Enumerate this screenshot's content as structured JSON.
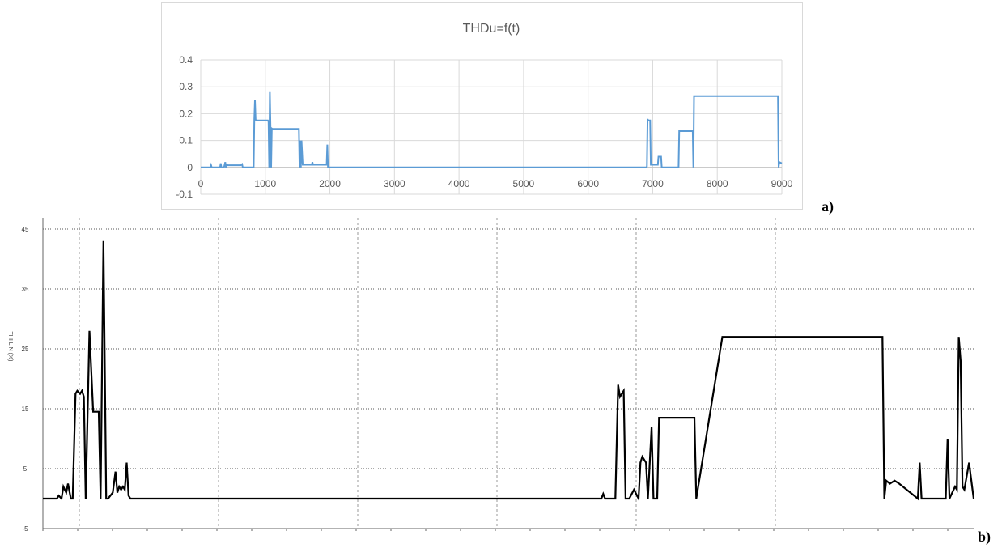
{
  "chart_data": [
    {
      "type": "line",
      "title": "THDu=f(t)",
      "xlabel": "",
      "ylabel": "",
      "xlim": [
        0,
        9000
      ],
      "ylim": [
        -0.1,
        0.4
      ],
      "x_ticks": [
        "0",
        "1000",
        "2000",
        "3000",
        "4000",
        "5000",
        "6000",
        "7000",
        "8000",
        "9000"
      ],
      "y_ticks": [
        "0.4",
        "0.3",
        "0.2",
        "0.1",
        "0",
        "-0.1"
      ],
      "grid": true,
      "color": "#5b9bd5",
      "series": [
        {
          "x": [
            0,
            150,
            160,
            170,
            300,
            310,
            320,
            360,
            380,
            390,
            400,
            420,
            620,
            640,
            650,
            820,
            830,
            840,
            850,
            860,
            1040,
            1050,
            1060,
            1070,
            1080,
            1090,
            1100,
            1110,
            1120,
            1500,
            1520,
            1530,
            1540,
            1550,
            1560,
            1580,
            1600,
            1720,
            1730,
            1740,
            1950,
            1960,
            1970,
            1980,
            1990,
            6700,
            6900,
            6910,
            6920,
            6930,
            6960,
            6970,
            6980,
            7080,
            7090,
            7100,
            7130,
            7140,
            7150,
            7400,
            7410,
            7620,
            7630,
            7640,
            8930,
            8940,
            8950,
            8960,
            9000
          ],
          "y": [
            0,
            0,
            0.008,
            0,
            0,
            0.015,
            0,
            0,
            0.02,
            0,
            0.01,
            0.008,
            0.008,
            0.012,
            0,
            0,
            0.178,
            0.25,
            0.178,
            0.175,
            0.175,
            0.17,
            0,
            0.28,
            0.145,
            0,
            0.145,
            0.143,
            0.143,
            0.143,
            0.143,
            0,
            0.1,
            0,
            0.1,
            0.01,
            0.01,
            0.01,
            0.02,
            0.01,
            0.01,
            0.085,
            0,
            0,
            0,
            0,
            0,
            0.003,
            0.18,
            0.175,
            0.175,
            0.01,
            0.01,
            0.01,
            0.04,
            0.04,
            0.04,
            0,
            0,
            0,
            0.135,
            0.135,
            0,
            0.265,
            0.265,
            0.265,
            0,
            0.02,
            0.015
          ]
        }
      ],
      "figure_label": "a)"
    },
    {
      "type": "line",
      "title": "",
      "xlabel": "",
      "ylabel": "THI LIN (%)",
      "xlim": [
        0,
        1
      ],
      "ylim": [
        -5,
        45
      ],
      "y_ticks": [
        "45",
        "35",
        "25",
        "15",
        "5",
        "-5"
      ],
      "grid": true,
      "color": "#000000",
      "series": [
        {
          "x": [
            0,
            0.015,
            0.017,
            0.02,
            0.022,
            0.025,
            0.027,
            0.03,
            0.032,
            0.035,
            0.037,
            0.04,
            0.042,
            0.044,
            0.046,
            0.05,
            0.054,
            0.056,
            0.058,
            0.06,
            0.062,
            0.065,
            0.068,
            0.07,
            0.075,
            0.078,
            0.08,
            0.082,
            0.084,
            0.086,
            0.088,
            0.09,
            0.092,
            0.094,
            0.096,
            0.098,
            0.1,
            0.105,
            0.11,
            0.6,
            0.602,
            0.604,
            0.61,
            0.615,
            0.618,
            0.62,
            0.624,
            0.626,
            0.628,
            0.63,
            0.635,
            0.64,
            0.642,
            0.644,
            0.648,
            0.65,
            0.654,
            0.656,
            0.658,
            0.66,
            0.662,
            0.664,
            0.68,
            0.7,
            0.702,
            0.73,
            0.732,
            0.734,
            0.9,
            0.902,
            0.904,
            0.906,
            0.91,
            0.915,
            0.92,
            0.94,
            0.942,
            0.944,
            0.97,
            0.972,
            0.974,
            0.98,
            0.982,
            0.984,
            0.986,
            0.988,
            0.99,
            0.995,
            1.0
          ],
          "y": [
            0,
            0,
            0.5,
            0,
            2,
            1,
            2.5,
            0,
            0,
            17.5,
            18,
            17.5,
            18,
            17,
            0,
            28,
            14.5,
            14.5,
            14.5,
            14.5,
            0,
            43,
            0,
            0,
            1,
            4.5,
            1,
            2,
            1.5,
            2,
            1.5,
            6,
            0.5,
            0,
            0,
            0,
            0,
            0,
            0,
            0,
            0.8,
            0,
            0,
            0,
            19,
            17,
            18,
            0,
            0,
            0,
            1.5,
            0,
            6,
            7,
            6,
            0,
            12,
            0,
            0,
            0,
            13.5,
            13.5,
            13.5,
            13.5,
            0,
            27,
            27,
            27,
            27,
            27,
            0,
            3,
            2.5,
            3,
            2.5,
            0,
            6,
            0,
            0,
            10,
            0,
            2,
            1.5,
            27,
            23,
            2,
            1.5,
            6,
            0
          ]
        }
      ],
      "figure_label": "b)"
    }
  ]
}
